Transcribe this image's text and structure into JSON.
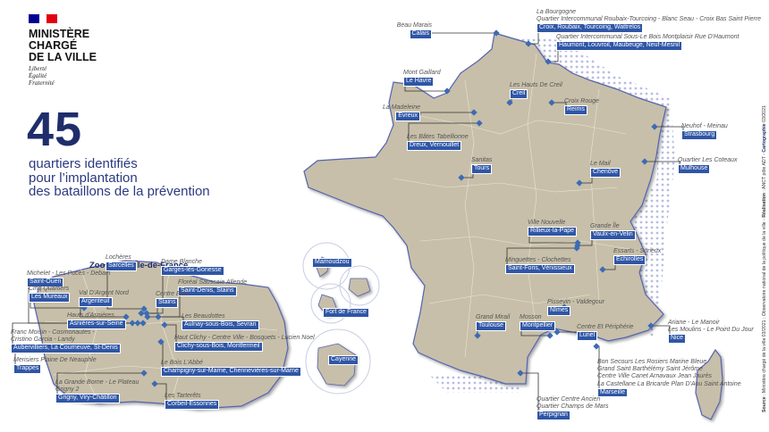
{
  "header": {
    "ministry_lines": [
      "MINISTÈRE",
      "CHARGÉ",
      "DE LA VILLE"
    ],
    "motto_lines": [
      "Liberté",
      "Égalité",
      "Fraternité"
    ],
    "flag_colors": [
      "#000091",
      "#ffffff",
      "#e1000f"
    ]
  },
  "headline": {
    "count": "45",
    "lines": [
      "quartiers identifiés",
      "pour l’implantation",
      "des bataillons de la prévention"
    ]
  },
  "colors": {
    "land": "#c7bfa9",
    "border": "#5563b0",
    "marker": "#3d6bb3",
    "label_bg": "#2f56a6",
    "title": "#1f2d6b"
  },
  "idf": {
    "title": "Zoom sur l’Île-de-France",
    "labels": [
      {
        "quartiers": [
          "Lochères"
        ],
        "ville": "Sarcelles"
      },
      {
        "quartiers": [
          "Dame Blanche"
        ],
        "ville": "Garges-lès-Gonesse"
      },
      {
        "quartiers": [
          "Michelet - Les Puces - Debain"
        ],
        "ville": "Saint-Ouen"
      },
      {
        "quartiers": [
          "Floréal Saussaie Allende"
        ],
        "ville": "Saint-Denis, Stains"
      },
      {
        "quartiers": [
          "Cinq Quartiers"
        ],
        "ville": "Les Mureaux"
      },
      {
        "quartiers": [
          "Val D'Argent Nord"
        ],
        "ville": "Argenteuil"
      },
      {
        "quartiers": [
          "Centre Elsa"
        ],
        "ville": "Stains"
      },
      {
        "quartiers": [
          "Hauts d'Asnières"
        ],
        "ville": "Asnières-sur-Seine"
      },
      {
        "quartiers": [
          "Les Beaudottes"
        ],
        "ville": "Aulnay-sous-Bois, Sevran"
      },
      {
        "quartiers": [
          "Franc Moisin - Cosmonautes -",
          "Cristino Garcia - Landy"
        ],
        "ville": "Aubervilliers, La Courneuve, St-Denis"
      },
      {
        "quartiers": [
          "Haut Clichy - Centre Ville - Bosquets - Lucien Noel"
        ],
        "ville": "Clichy-sous-Bois, Montfermeil"
      },
      {
        "quartiers": [
          "Merisiers Plaine De Neauphle"
        ],
        "ville": "Trappes"
      },
      {
        "quartiers": [
          "Le Bois L'Abbé"
        ],
        "ville": "Champigny-sur-Marne, Chennevières-sur-Marne"
      },
      {
        "quartiers": [
          "La Grande Borne - Le Plateau",
          "Grigny 2"
        ],
        "ville": "Grigny, Viry-Châtillon"
      },
      {
        "quartiers": [
          "Les Tarterêts"
        ],
        "ville": "Corbeil-Essonnes"
      }
    ]
  },
  "france": {
    "labels": [
      {
        "quartiers": [
          "Beau Marais"
        ],
        "ville": "Calais"
      },
      {
        "quartiers": [
          "La Bourgogne",
          "Quartier Intercommunal Roubaix-Tourcoing - Blanc Seau - Croix Bas Saint Pierre"
        ],
        "ville": "Croix, Roubaix, Tourcoing, Wattrelos"
      },
      {
        "quartiers": [
          "Quartier Intercommunal Sous-Le Bois Montplaisir Rue D'Haumont"
        ],
        "ville": "Haumont, Louvroil, Maubeuge, Neuf-Mesnil"
      },
      {
        "quartiers": [
          "Mont Gaillard"
        ],
        "ville": "Le Havre"
      },
      {
        "quartiers": [
          "Les Hauts De Creil"
        ],
        "ville": "Creil"
      },
      {
        "quartiers": [
          "Croix Rouge"
        ],
        "ville": "Reims"
      },
      {
        "quartiers": [
          "La Madeleine"
        ],
        "ville": "Evreux"
      },
      {
        "quartiers": [
          "Les Bâtes Tabellionne"
        ],
        "ville": "Dreux, Vernouillet"
      },
      {
        "quartiers": [
          "Neuhof - Meinau"
        ],
        "ville": "Strasbourg"
      },
      {
        "quartiers": [
          "Sanitas"
        ],
        "ville": "Tours"
      },
      {
        "quartiers": [
          "Quartier Les Coteaux"
        ],
        "ville": "Mulhouse"
      },
      {
        "quartiers": [
          "Le Mail"
        ],
        "ville": "Chenôve"
      },
      {
        "quartiers": [
          "Ville Nouvelle"
        ],
        "ville": "Rillieux-la-Pape"
      },
      {
        "quartiers": [
          "Grande Île"
        ],
        "ville": "Vaulx-en-Velin"
      },
      {
        "quartiers": [
          "Minguettes - Clochettes"
        ],
        "ville": "Saint-Fons, Vénissieux"
      },
      {
        "quartiers": [
          "Essarts - Surieux"
        ],
        "ville": "Echirolles"
      },
      {
        "quartiers": [
          "Pissevin - Valdegour"
        ],
        "ville": "Nîmes"
      },
      {
        "quartiers": [
          "Grand Mirail"
        ],
        "ville": "Toulouse"
      },
      {
        "quartiers": [
          "Mosson"
        ],
        "ville": "Montpellier"
      },
      {
        "quartiers": [
          "Centre Et Périphérie"
        ],
        "ville": "Lunel"
      },
      {
        "quartiers": [
          "Ariane - Le Manoir",
          "Les Moulins - Le Point Du Jour"
        ],
        "ville": "Nice"
      },
      {
        "quartiers": [
          "Bon Secours Les Rosiers Marine Bleue",
          "Grand Saint Barthélémy Saint Jérôme",
          "Centre Ville Canet Arnavaux Jean Jaurès",
          "La Castellane La Bricarde Plan D'Aou Saint Antoine"
        ],
        "ville": "Marseille"
      },
      {
        "quartiers": [
          "Quartier Centre Ancien",
          "Quartier Champs de Mars"
        ],
        "ville": "Perpignan"
      },
      {
        "quartiers": [],
        "ville": "Mamoudzou"
      },
      {
        "quartiers": [],
        "ville": "Fort de France"
      },
      {
        "quartiers": [],
        "ville": "Cayenne"
      }
    ]
  },
  "credit": {
    "source_label": "Source",
    "source_text": " : Ministère chargé de la ville 03/2021 ; Observatoire national de la politique de la ville - ",
    "realisation_label": "Réalisation",
    "realisation_text": " : ANCT pôle ADT - ",
    "carto_label": "Cartographie",
    "carto_text": " 03/2021"
  }
}
